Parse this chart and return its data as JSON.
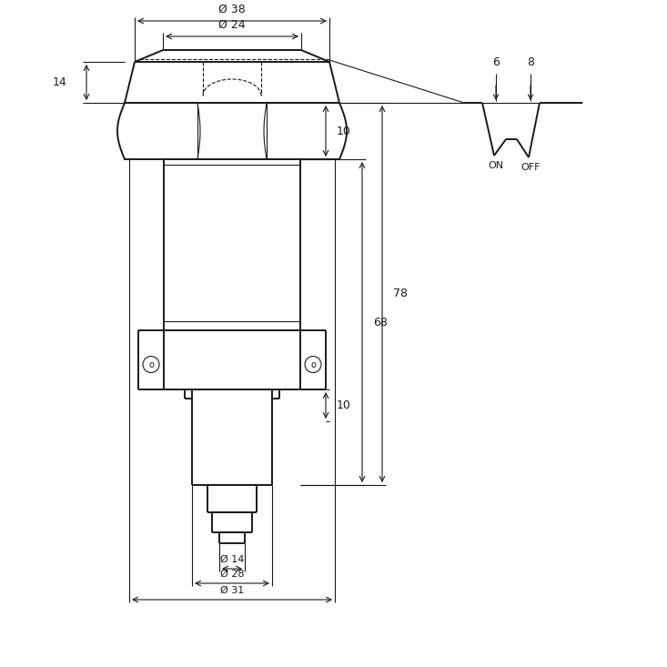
{
  "bg_color": "#ffffff",
  "line_color": "#1a1a1a",
  "figsize": [
    7.33,
    7.33
  ],
  "dpi": 100,
  "dims": {
    "d38": "Ø 38",
    "d24": "Ø 24",
    "d31": "Ø 31",
    "d28": "Ø 28",
    "d14": "Ø 14",
    "h14": "14",
    "h10_top": "10",
    "h10_bot": "10",
    "h68": "68",
    "h78": "78",
    "w6": "6",
    "w8": "8",
    "on": "ON",
    "off": "OFF"
  }
}
